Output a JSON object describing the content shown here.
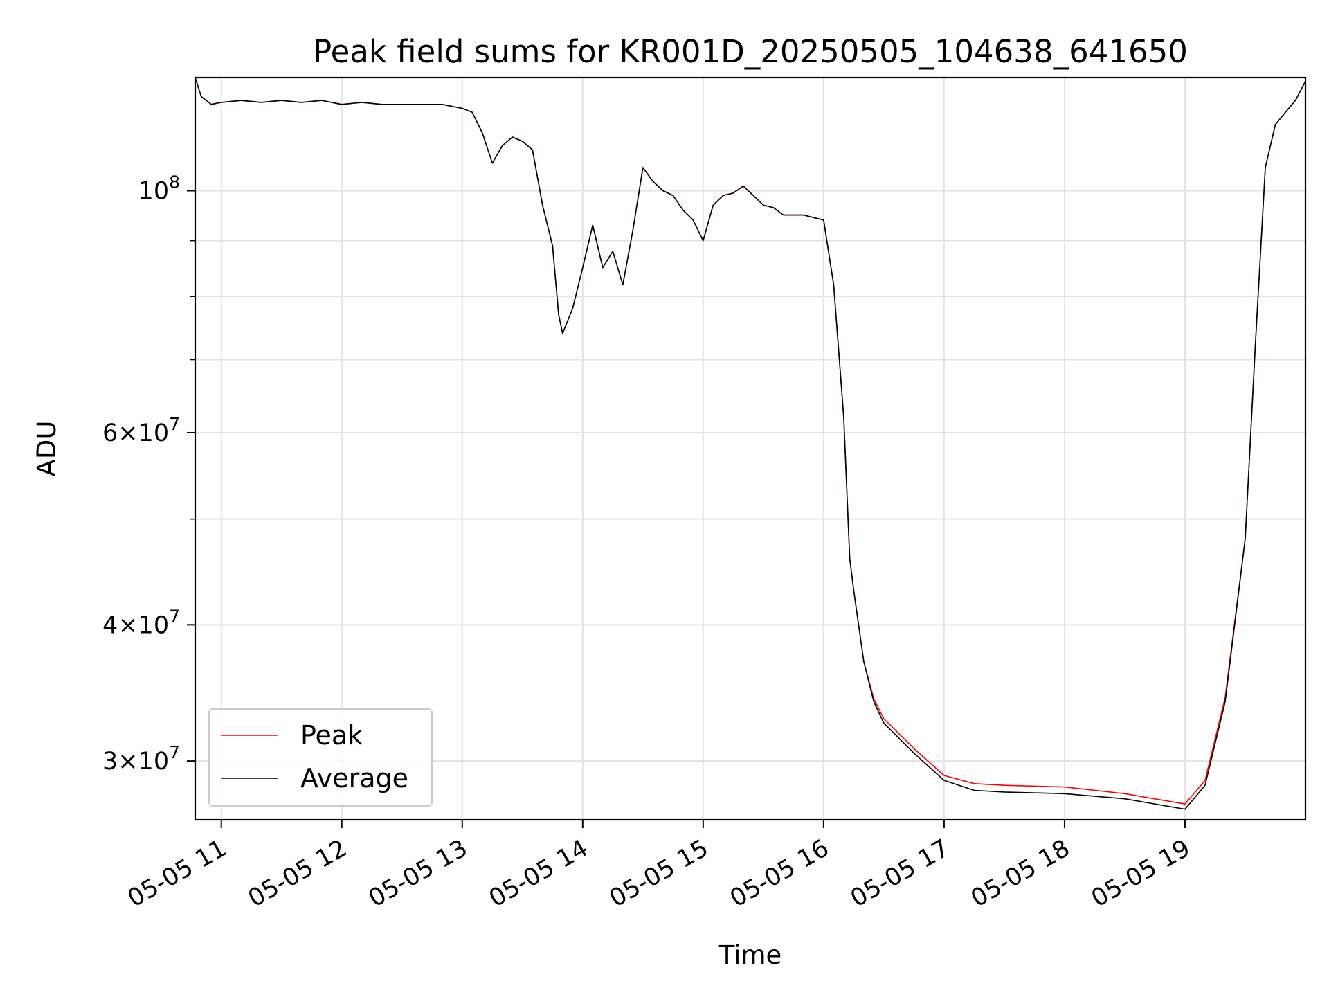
{
  "chart_data": {
    "type": "line",
    "title": "Peak field sums for KR001D_20250505_104638_641650",
    "xlabel": "Time",
    "ylabel": "ADU",
    "y_scale": "log",
    "ylim": [
      26500000,
      127000000
    ],
    "xlim": [
      "2025-05-05 10:47",
      "2025-05-05 20:00"
    ],
    "x_ticks": [
      {
        "t": "2025-05-05 11:00",
        "label": "05-05 11"
      },
      {
        "t": "2025-05-05 12:00",
        "label": "05-05 12"
      },
      {
        "t": "2025-05-05 13:00",
        "label": "05-05 13"
      },
      {
        "t": "2025-05-05 14:00",
        "label": "05-05 14"
      },
      {
        "t": "2025-05-05 15:00",
        "label": "05-05 15"
      },
      {
        "t": "2025-05-05 16:00",
        "label": "05-05 16"
      },
      {
        "t": "2025-05-05 17:00",
        "label": "05-05 17"
      },
      {
        "t": "2025-05-05 18:00",
        "label": "05-05 18"
      },
      {
        "t": "2025-05-05 19:00",
        "label": "05-05 19"
      }
    ],
    "y_ticks_major": [
      {
        "v": 30000000,
        "base": "3×10",
        "exp": "7"
      },
      {
        "v": 40000000,
        "base": "4×10",
        "exp": "7"
      },
      {
        "v": 60000000,
        "base": "6×10",
        "exp": "7"
      },
      {
        "v": 100000000,
        "base": "10",
        "exp": "8"
      }
    ],
    "y_ticks_minor": [
      50000000,
      70000000,
      80000000,
      90000000
    ],
    "grid": true,
    "legend_position": "lower-left",
    "series": [
      {
        "name": "Peak",
        "color": "#ff0000"
      },
      {
        "name": "Average",
        "color": "#000000"
      }
    ],
    "x": [
      "2025-05-05 10:47",
      "2025-05-05 10:50",
      "2025-05-05 10:55",
      "2025-05-05 11:00",
      "2025-05-05 11:10",
      "2025-05-05 11:20",
      "2025-05-05 11:30",
      "2025-05-05 11:40",
      "2025-05-05 11:50",
      "2025-05-05 12:00",
      "2025-05-05 12:10",
      "2025-05-05 12:20",
      "2025-05-05 12:30",
      "2025-05-05 12:40",
      "2025-05-05 12:50",
      "2025-05-05 13:00",
      "2025-05-05 13:05",
      "2025-05-05 13:10",
      "2025-05-05 13:15",
      "2025-05-05 13:20",
      "2025-05-05 13:25",
      "2025-05-05 13:30",
      "2025-05-05 13:35",
      "2025-05-05 13:40",
      "2025-05-05 13:45",
      "2025-05-05 13:48",
      "2025-05-05 13:50",
      "2025-05-05 13:55",
      "2025-05-05 14:00",
      "2025-05-05 14:05",
      "2025-05-05 14:10",
      "2025-05-05 14:15",
      "2025-05-05 14:20",
      "2025-05-05 14:25",
      "2025-05-05 14:30",
      "2025-05-05 14:35",
      "2025-05-05 14:40",
      "2025-05-05 14:45",
      "2025-05-05 14:50",
      "2025-05-05 14:55",
      "2025-05-05 15:00",
      "2025-05-05 15:05",
      "2025-05-05 15:10",
      "2025-05-05 15:15",
      "2025-05-05 15:20",
      "2025-05-05 15:25",
      "2025-05-05 15:30",
      "2025-05-05 15:35",
      "2025-05-05 15:40",
      "2025-05-05 15:45",
      "2025-05-05 15:50",
      "2025-05-05 16:00",
      "2025-05-05 16:05",
      "2025-05-05 16:10",
      "2025-05-05 16:13",
      "2025-05-05 16:15",
      "2025-05-05 16:20",
      "2025-05-05 16:25",
      "2025-05-05 16:30",
      "2025-05-05 16:45",
      "2025-05-05 17:00",
      "2025-05-05 17:15",
      "2025-05-05 17:30",
      "2025-05-05 18:00",
      "2025-05-05 18:30",
      "2025-05-05 19:00",
      "2025-05-05 19:10",
      "2025-05-05 19:20",
      "2025-05-05 19:30",
      "2025-05-05 19:35",
      "2025-05-05 19:40",
      "2025-05-05 19:45",
      "2025-05-05 19:50",
      "2025-05-05 19:55",
      "2025-05-05 20:00"
    ],
    "values_average": [
      127000000,
      122000000,
      120000000,
      120500000,
      121000000,
      120500000,
      121000000,
      120500000,
      121000000,
      120000000,
      120500000,
      120000000,
      120000000,
      120000000,
      120000000,
      119000000,
      118000000,
      113000000,
      106000000,
      110000000,
      112000000,
      111000000,
      109000000,
      97000000,
      89000000,
      77000000,
      74000000,
      78000000,
      85000000,
      93000000,
      85000000,
      88000000,
      82000000,
      92000000,
      105000000,
      102000000,
      100000000,
      99000000,
      96000000,
      94000000,
      90000000,
      97000000,
      99000000,
      99500000,
      101000000,
      99000000,
      97000000,
      96500000,
      95000000,
      95000000,
      95000000,
      94000000,
      82000000,
      62000000,
      46000000,
      43000000,
      37000000,
      34000000,
      32500000,
      30500000,
      28800000,
      28200000,
      28100000,
      28000000,
      27700000,
      27100000,
      28500000,
      34000000,
      48000000,
      72000000,
      105000000,
      115000000,
      118000000,
      121000000,
      126000000
    ],
    "values_peak": [
      127000000,
      122000000,
      120000000,
      120500000,
      121000000,
      120500000,
      121000000,
      120500000,
      121000000,
      120000000,
      120500000,
      120000000,
      120000000,
      120000000,
      120000000,
      119000000,
      118000000,
      113000000,
      106000000,
      110000000,
      112000000,
      111000000,
      109000000,
      97000000,
      89000000,
      77000000,
      74000000,
      78000000,
      85000000,
      93000000,
      85000000,
      88000000,
      82000000,
      92000000,
      105000000,
      102000000,
      100000000,
      99000000,
      96000000,
      94000000,
      90000000,
      97000000,
      99000000,
      99500000,
      101000000,
      99000000,
      97000000,
      96500000,
      95000000,
      95000000,
      95000000,
      94000000,
      82000000,
      62000000,
      46000000,
      43000000,
      37000000,
      34200000,
      32800000,
      30800000,
      29100000,
      28600000,
      28500000,
      28400000,
      28000000,
      27400000,
      28800000,
      34300000,
      48000000,
      72000000,
      105000000,
      115000000,
      118000000,
      121000000,
      126000000
    ]
  }
}
